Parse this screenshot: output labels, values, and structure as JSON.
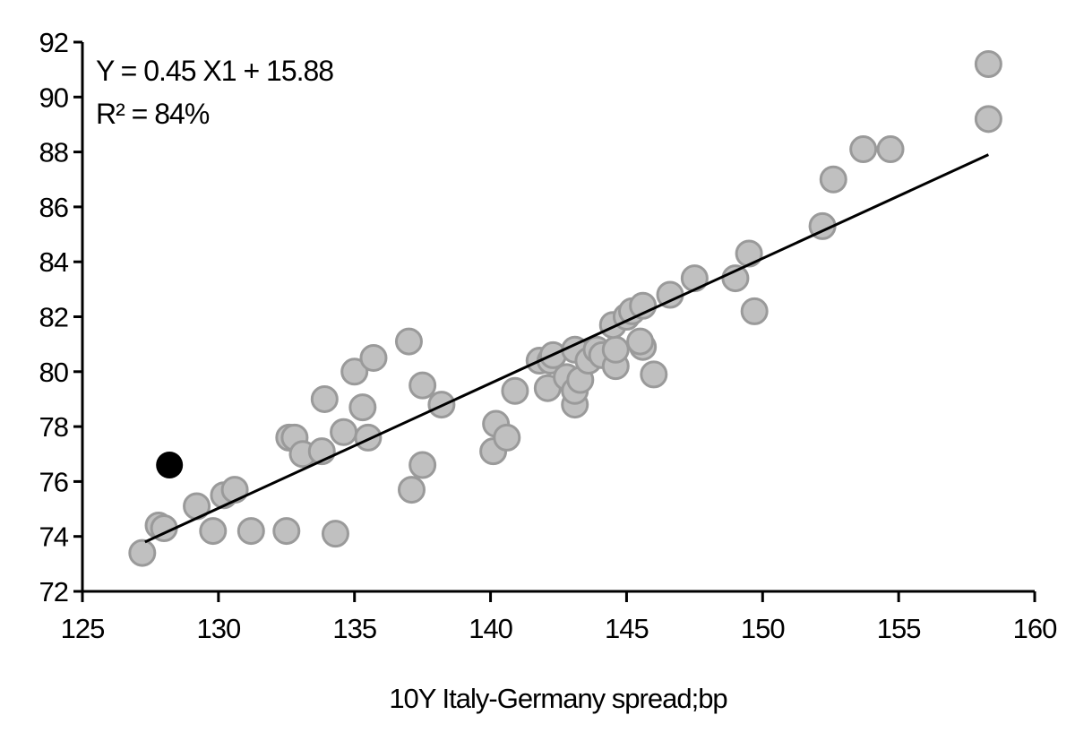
{
  "chart_data": {
    "type": "scatter",
    "title": "",
    "xlabel": "10Y Italy-Germany spread;bp",
    "ylabel": "",
    "xlim": [
      125,
      160
    ],
    "ylim": [
      72,
      92
    ],
    "x_ticks": [
      "125",
      "130",
      "135",
      "140",
      "145",
      "150",
      "155",
      "160"
    ],
    "y_ticks": [
      "72",
      "74",
      "76",
      "78",
      "80",
      "82",
      "84",
      "86",
      "88",
      "90",
      "92"
    ],
    "grid": false,
    "annotations": [
      "Y = 0.45 X1 + 15.88",
      "R² = 84%"
    ],
    "colors": {
      "points": "#c0c0c0",
      "point_edge": "#9a9a9a",
      "highlight": "#000000",
      "trendline": "#000000"
    },
    "points": [
      [
        127.2,
        73.4
      ],
      [
        127.8,
        74.4
      ],
      [
        128.0,
        74.3
      ],
      [
        129.2,
        75.1
      ],
      [
        129.8,
        74.2
      ],
      [
        130.2,
        75.5
      ],
      [
        130.6,
        75.7
      ],
      [
        131.2,
        74.2
      ],
      [
        132.5,
        74.2
      ],
      [
        132.6,
        77.6
      ],
      [
        132.8,
        77.6
      ],
      [
        133.1,
        77.0
      ],
      [
        133.8,
        77.1
      ],
      [
        133.9,
        79.0
      ],
      [
        134.3,
        74.1
      ],
      [
        134.6,
        77.8
      ],
      [
        135.0,
        80.0
      ],
      [
        135.7,
        80.5
      ],
      [
        135.3,
        78.7
      ],
      [
        135.5,
        77.6
      ],
      [
        137.0,
        81.1
      ],
      [
        137.1,
        75.7
      ],
      [
        137.5,
        79.5
      ],
      [
        137.5,
        76.6
      ],
      [
        138.2,
        78.8
      ],
      [
        140.1,
        77.1
      ],
      [
        140.2,
        78.1
      ],
      [
        140.6,
        77.6
      ],
      [
        140.9,
        79.3
      ],
      [
        141.8,
        80.4
      ],
      [
        142.1,
        79.4
      ],
      [
        142.2,
        80.4
      ],
      [
        142.3,
        80.6
      ],
      [
        142.8,
        79.8
      ],
      [
        143.1,
        78.8
      ],
      [
        143.1,
        79.3
      ],
      [
        143.1,
        80.8
      ],
      [
        143.3,
        79.7
      ],
      [
        143.6,
        80.4
      ],
      [
        143.9,
        80.8
      ],
      [
        144.1,
        80.6
      ],
      [
        144.6,
        80.2
      ],
      [
        144.6,
        80.8
      ],
      [
        144.5,
        81.7
      ],
      [
        145.0,
        82.0
      ],
      [
        145.2,
        82.2
      ],
      [
        145.6,
        82.4
      ],
      [
        145.6,
        80.9
      ],
      [
        145.5,
        81.1
      ],
      [
        146.0,
        79.9
      ],
      [
        146.6,
        82.8
      ],
      [
        147.5,
        83.4
      ],
      [
        149.0,
        83.4
      ],
      [
        149.5,
        84.3
      ],
      [
        149.7,
        82.2
      ],
      [
        152.2,
        85.3
      ],
      [
        152.6,
        87.0
      ],
      [
        153.7,
        88.1
      ],
      [
        154.7,
        88.1
      ],
      [
        158.3,
        91.2
      ],
      [
        158.3,
        89.2
      ]
    ],
    "highlight_point": [
      128.2,
      76.6
    ],
    "trendline": [
      [
        127.3,
        73.8
      ],
      [
        158.3,
        87.9
      ]
    ]
  }
}
